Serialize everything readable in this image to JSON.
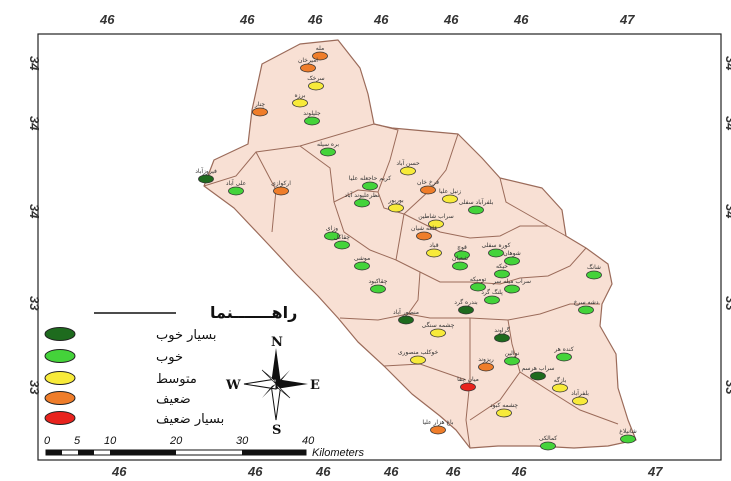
{
  "axes": {
    "top": [
      "46",
      "46",
      "46",
      "46",
      "46",
      "46",
      "47"
    ],
    "bottom": [
      "46",
      "46",
      "46",
      "46",
      "46",
      "46",
      "47"
    ],
    "left": [
      "34",
      "34",
      "34",
      "33",
      "33"
    ],
    "right": [
      "34",
      "34",
      "34",
      "33",
      "33"
    ]
  },
  "legend": {
    "title": "راهـــــــنما",
    "items": [
      {
        "label": "بسیار خوب",
        "color": "#1e6b1e"
      },
      {
        "label": "خوب",
        "color": "#44d33a"
      },
      {
        "label": "متوسط",
        "color": "#f7ea3a"
      },
      {
        "label": "ضعیف",
        "color": "#ef7d2a"
      },
      {
        "label": "بسیار ضعیف",
        "color": "#e8231d"
      }
    ]
  },
  "compass": {
    "n": "N",
    "s": "S",
    "e": "E",
    "w": "W"
  },
  "scale": {
    "ticks": [
      "0",
      "5",
      "10",
      "20",
      "30",
      "40"
    ],
    "unit": "Kilometers"
  },
  "places": [
    {
      "name": "مله",
      "cls": 3
    },
    {
      "name": "امیرخان",
      "cls": 3
    },
    {
      "name": "سرخک",
      "cls": 2
    },
    {
      "name": "برزه",
      "cls": 2
    },
    {
      "name": "چنار",
      "cls": 3
    },
    {
      "name": "جلیلوند",
      "cls": 1
    },
    {
      "name": "بره سیله",
      "cls": 1
    },
    {
      "name": "فیروزآباد",
      "cls": 0
    },
    {
      "name": "علی آباد",
      "cls": 1
    },
    {
      "name": "ارکوازی",
      "cls": 3
    },
    {
      "name": "حسن آباد",
      "cls": 2
    },
    {
      "name": "کریم حاجعله علیا",
      "cls": 1
    },
    {
      "name": "فرخ خان",
      "cls": 3
    },
    {
      "name": "زنبل علیا",
      "cls": 2
    },
    {
      "name": "نظرعلیوند آباد",
      "cls": 1
    },
    {
      "name": "بوربور",
      "cls": 2
    },
    {
      "name": "بلفرآباد سفلی",
      "cls": 1
    },
    {
      "name": "سراب شاطین",
      "cls": 2
    },
    {
      "name": "قلعه شیان",
      "cls": 3
    },
    {
      "name": "وزای",
      "cls": 1
    },
    {
      "name": "چقاکل",
      "cls": 1
    },
    {
      "name": "قباد",
      "cls": 2
    },
    {
      "name": "قوچ",
      "cls": 1
    },
    {
      "name": "کوره سفلی",
      "cls": 1
    },
    {
      "name": "شوهان",
      "cls": 1
    },
    {
      "name": "شانگ",
      "cls": 1
    },
    {
      "name": "موشی",
      "cls": 1
    },
    {
      "name": "شعبان",
      "cls": 1
    },
    {
      "name": "چقاکبود",
      "cls": 1
    },
    {
      "name": "خیکه",
      "cls": 1
    },
    {
      "name": "تومیکه",
      "cls": 1
    },
    {
      "name": "سراب میله سر",
      "cls": 1
    },
    {
      "name": "پلنگ گرد",
      "cls": 1
    },
    {
      "name": "بندره گرد",
      "cls": 0
    },
    {
      "name": "دشه سرخ",
      "cls": 1
    },
    {
      "name": "منصور آباد",
      "cls": 0
    },
    {
      "name": "گراوند",
      "cls": 0
    },
    {
      "name": "چشمه سنگی",
      "cls": 2
    },
    {
      "name": "کنده هر",
      "cls": 1
    },
    {
      "name": "نوالین",
      "cls": 1
    },
    {
      "name": "خوکلب منصوری",
      "cls": 2
    },
    {
      "name": "ریزوند",
      "cls": 3
    },
    {
      "name": "سراب هرسم",
      "cls": 0
    },
    {
      "name": "میان چقا",
      "cls": 4
    },
    {
      "name": "بازگه",
      "cls": 2
    },
    {
      "name": "بلفرآباد",
      "cls": 2
    },
    {
      "name": "چشمه کبود",
      "cls": 2
    },
    {
      "name": "باغ هزار علیا",
      "cls": 3
    },
    {
      "name": "کمالکی",
      "cls": 1
    },
    {
      "name": "شانیلاغ",
      "cls": 1
    }
  ]
}
